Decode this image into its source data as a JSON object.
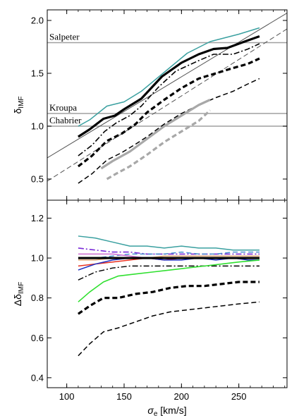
{
  "chart_data": [
    {
      "type": "line",
      "panel": "top",
      "xlabel": "",
      "ylabel": "δ_IMF",
      "ylabel_main": "δ",
      "ylabel_sub": "IMF",
      "xlim": [
        83,
        292
      ],
      "ylim": [
        0.3,
        2.1
      ],
      "xticks": [
        100,
        150,
        200,
        250
      ],
      "yticks": [
        0.5,
        1.0,
        1.5,
        2.0
      ],
      "ytick_labels": [
        "0.5",
        "1.0",
        "1.5",
        "2.0"
      ],
      "reference_lines": [
        {
          "name": "Salpeter",
          "y": 1.79
        },
        {
          "name": "Kroupa",
          "y": 1.12
        },
        {
          "name": "Chabrier",
          "y": 1.0
        }
      ],
      "diagonals": [
        {
          "style": "solid-thin",
          "color": "#555555",
          "x": [
            83,
            292
          ],
          "y": [
            0.7,
            2.07
          ]
        },
        {
          "style": "dashed-thin",
          "color": "#555555",
          "x": [
            83,
            292
          ],
          "y": [
            0.48,
            1.92
          ]
        }
      ],
      "series": [
        {
          "style": "solid",
          "color": "#3aa0a0",
          "width": 1.5,
          "x": [
            110,
            120,
            135,
            150,
            165,
            185,
            205,
            225,
            250,
            268
          ],
          "y": [
            1.0,
            1.06,
            1.19,
            1.23,
            1.33,
            1.51,
            1.69,
            1.8,
            1.87,
            1.93
          ]
        },
        {
          "style": "solid",
          "color": "#000000",
          "width": 3.2,
          "x": [
            110,
            120,
            132,
            142,
            150,
            165,
            183,
            200,
            215,
            228,
            240,
            255,
            268
          ],
          "y": [
            0.9,
            0.97,
            1.07,
            1.1,
            1.16,
            1.26,
            1.47,
            1.6,
            1.68,
            1.73,
            1.74,
            1.8,
            1.85
          ]
        },
        {
          "style": "dashdot",
          "color": "#000000",
          "width": 1.6,
          "x": [
            110,
            122,
            133,
            143,
            155,
            165,
            180,
            195,
            215,
            228,
            245,
            258,
            268
          ],
          "y": [
            0.72,
            0.82,
            0.95,
            1.03,
            1.1,
            1.19,
            1.37,
            1.52,
            1.62,
            1.68,
            1.68,
            1.73,
            1.78
          ]
        },
        {
          "style": "dashed",
          "color": "#000000",
          "width": 3.2,
          "x": [
            110,
            122,
            135,
            148,
            160,
            170,
            185,
            200,
            215,
            230,
            245,
            258,
            268
          ],
          "y": [
            0.62,
            0.72,
            0.86,
            0.93,
            1.02,
            1.13,
            1.25,
            1.36,
            1.45,
            1.5,
            1.55,
            1.59,
            1.64
          ]
        },
        {
          "style": "dashed",
          "color": "#000000",
          "width": 1.5,
          "x": [
            110,
            122,
            135,
            148,
            160,
            170,
            185,
            200,
            215,
            230,
            245,
            258,
            268
          ],
          "y": [
            0.46,
            0.55,
            0.68,
            0.75,
            0.83,
            0.9,
            1.02,
            1.12,
            1.2,
            1.27,
            1.33,
            1.4,
            1.45
          ]
        },
        {
          "style": "solid",
          "color": "#a8a8a8",
          "width": 3.2,
          "x": [
            130,
            140,
            155,
            170,
            185,
            200,
            215,
            225
          ],
          "y": [
            0.6,
            0.67,
            0.76,
            0.88,
            1.0,
            1.1,
            1.2,
            1.25
          ]
        },
        {
          "style": "dashed",
          "color": "#a8a8a8",
          "width": 3.2,
          "x": [
            135,
            143,
            155,
            170,
            185,
            200,
            215,
            225
          ],
          "y": [
            0.5,
            0.55,
            0.62,
            0.73,
            0.85,
            0.95,
            1.05,
            1.15
          ]
        }
      ]
    },
    {
      "type": "line",
      "panel": "bottom",
      "xlabel": "σ_e [km/s]",
      "xlabel_main": "σ",
      "xlabel_sub": "e",
      "xlabel_unit": " [km/s]",
      "ylabel": "Δδ_IMF",
      "ylabel_main": "Δδ",
      "ylabel_sub": "IMF",
      "xlim": [
        83,
        292
      ],
      "ylim": [
        0.35,
        1.29
      ],
      "xticks": [
        100,
        150,
        200,
        250
      ],
      "xtick_labels": [
        "100",
        "150",
        "200",
        "250"
      ],
      "yticks": [
        0.4,
        0.6,
        0.8,
        1.0,
        1.2
      ],
      "ytick_labels": [
        "0.4",
        "0.6",
        "0.8",
        "1.0",
        "1.2"
      ],
      "series": [
        {
          "style": "solid",
          "color": "#3aa0a0",
          "width": 1.5,
          "x": [
            110,
            125,
            140,
            155,
            170,
            185,
            200,
            215,
            230,
            245,
            258,
            268
          ],
          "y": [
            1.11,
            1.1,
            1.08,
            1.06,
            1.06,
            1.05,
            1.06,
            1.05,
            1.05,
            1.04,
            1.04,
            1.04
          ]
        },
        {
          "style": "dashdot",
          "color": "#7a2ad8",
          "width": 1.6,
          "x": [
            110,
            125,
            140,
            155,
            170,
            185,
            200,
            215,
            230,
            245,
            258,
            268
          ],
          "y": [
            1.05,
            1.04,
            1.03,
            1.03,
            1.02,
            1.02,
            1.02,
            1.02,
            1.02,
            1.02,
            1.02,
            1.02
          ]
        },
        {
          "style": "dashed",
          "color": "#4a90d0",
          "width": 1.5,
          "x": [
            110,
            125,
            140,
            155,
            170,
            185,
            200,
            215,
            230,
            245,
            258,
            268
          ],
          "y": [
            1.0,
            1.0,
            1.01,
            1.02,
            1.02,
            1.02,
            1.03,
            1.02,
            1.02,
            1.03,
            1.03,
            1.03
          ]
        },
        {
          "style": "solid",
          "color": "#e0a878",
          "width": 1.5,
          "x": [
            110,
            125,
            140,
            155,
            170,
            185,
            200,
            215,
            230,
            245,
            258,
            268
          ],
          "y": [
            0.99,
            0.99,
            1.0,
            1.0,
            1.0,
            1.01,
            1.01,
            1.01,
            1.01,
            1.01,
            1.01,
            1.01
          ]
        },
        {
          "style": "solid",
          "color": "#cc6bd0",
          "width": 1.5,
          "x": [
            110,
            125,
            140,
            155,
            170,
            185,
            200,
            215,
            230,
            245,
            258,
            268
          ],
          "y": [
            1.02,
            1.02,
            1.02,
            1.01,
            1.0,
            1.0,
            1.0,
            1.0,
            1.0,
            1.0,
            1.0,
            1.0
          ]
        },
        {
          "style": "solid",
          "color": "#e83020",
          "width": 1.5,
          "x": [
            110,
            125,
            140,
            155,
            170,
            185,
            200,
            215,
            230,
            245,
            258,
            268
          ],
          "y": [
            0.96,
            0.97,
            0.98,
            0.99,
            1.0,
            0.99,
            1.0,
            1.0,
            1.0,
            1.0,
            1.0,
            1.0
          ]
        },
        {
          "style": "solid",
          "color": "#2030c0",
          "width": 1.5,
          "x": [
            110,
            125,
            140,
            155,
            170,
            185,
            200,
            215,
            230,
            245,
            258,
            268
          ],
          "y": [
            0.94,
            0.97,
            0.99,
            1.0,
            1.0,
            0.99,
            0.99,
            1.0,
            0.99,
            1.0,
            0.99,
            0.99
          ]
        },
        {
          "style": "solid",
          "color": "#000000",
          "width": 3.2,
          "x": [
            110,
            268
          ],
          "y": [
            1.0,
            1.0
          ]
        },
        {
          "style": "dashdot",
          "color": "#000000",
          "width": 1.4,
          "x": [
            110,
            125,
            140,
            155,
            170,
            185,
            200,
            215,
            230,
            245,
            258,
            268
          ],
          "y": [
            0.89,
            0.93,
            0.95,
            0.96,
            0.96,
            0.96,
            0.96,
            0.96,
            0.96,
            0.96,
            0.96,
            0.96
          ]
        },
        {
          "style": "solid",
          "color": "#30e030",
          "width": 1.6,
          "x": [
            110,
            120,
            132,
            145,
            160,
            175,
            190,
            205,
            220,
            235,
            250,
            268
          ],
          "y": [
            0.78,
            0.83,
            0.88,
            0.91,
            0.92,
            0.93,
            0.94,
            0.95,
            0.96,
            0.97,
            0.98,
            0.99
          ]
        },
        {
          "style": "dashed",
          "color": "#000000",
          "width": 3.2,
          "x": [
            110,
            120,
            132,
            145,
            160,
            175,
            190,
            205,
            220,
            235,
            250,
            268
          ],
          "y": [
            0.72,
            0.76,
            0.8,
            0.8,
            0.82,
            0.83,
            0.85,
            0.86,
            0.86,
            0.87,
            0.88,
            0.88
          ]
        },
        {
          "style": "dashed",
          "color": "#000000",
          "width": 1.5,
          "x": [
            110,
            120,
            132,
            145,
            160,
            175,
            190,
            205,
            220,
            235,
            250,
            268
          ],
          "y": [
            0.51,
            0.57,
            0.63,
            0.65,
            0.68,
            0.71,
            0.73,
            0.74,
            0.75,
            0.76,
            0.77,
            0.78
          ]
        }
      ]
    }
  ]
}
